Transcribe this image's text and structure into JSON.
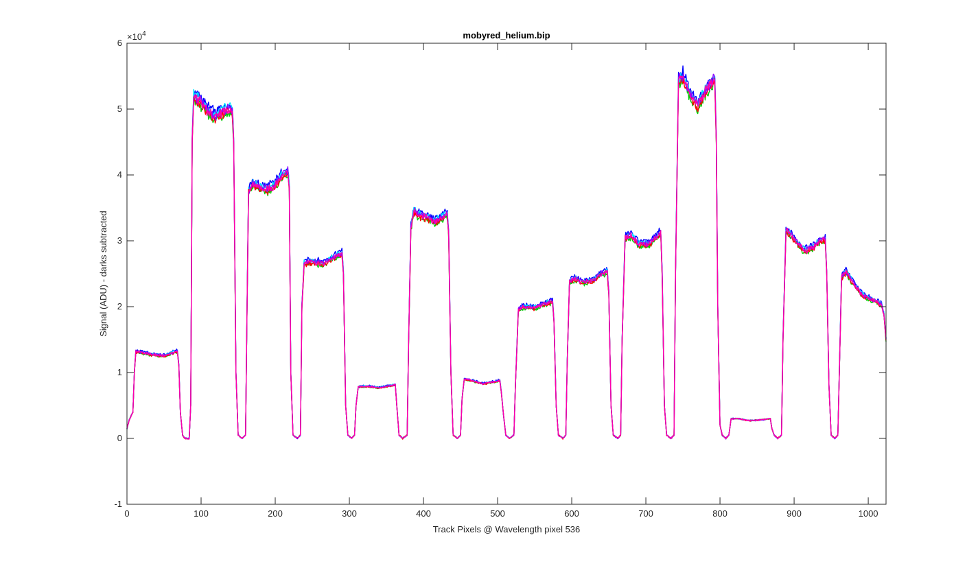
{
  "chart_data": {
    "type": "line",
    "title": "mobyred_helium.bip",
    "xlabel": "Track Pixels @ Wavelength pixel 536",
    "ylabel": "Signal (ADU) - darks subtracted",
    "xlim": [
      0,
      1024
    ],
    "ylim": [
      -10000,
      60000
    ],
    "y_exponent_label": "×10",
    "y_exponent_power": "4",
    "x_ticks": [
      0,
      100,
      200,
      300,
      400,
      500,
      600,
      700,
      800,
      900,
      1000
    ],
    "x_tick_labels": [
      "0",
      "100",
      "200",
      "300",
      "400",
      "500",
      "600",
      "700",
      "800",
      "900",
      "1000"
    ],
    "y_ticks": [
      -10000,
      0,
      10000,
      20000,
      30000,
      40000,
      50000,
      60000
    ],
    "y_tick_labels": [
      "-1",
      "0",
      "1",
      "2",
      "3",
      "4",
      "5",
      "6"
    ],
    "grid": false,
    "legend": "none",
    "series": [
      {
        "color": "#0000ff",
        "offset": 600
      },
      {
        "color": "#00cc00",
        "offset": -400
      },
      {
        "color": "#00e5ff",
        "offset": 300
      },
      {
        "color": "#ff0000",
        "offset": -250
      },
      {
        "color": "#8b00ff",
        "offset": 150
      },
      {
        "color": "#ff00aa",
        "offset": 0
      }
    ],
    "profile_points": [
      [
        0,
        1500
      ],
      [
        3,
        2800
      ],
      [
        8,
        4000
      ],
      [
        10,
        10000
      ],
      [
        12,
        13200
      ],
      [
        20,
        13000
      ],
      [
        35,
        12700
      ],
      [
        50,
        12500
      ],
      [
        62,
        13000
      ],
      [
        68,
        13200
      ],
      [
        70,
        11000
      ],
      [
        72,
        4000
      ],
      [
        75,
        500
      ],
      [
        78,
        0
      ],
      [
        84,
        0
      ],
      [
        86,
        5000
      ],
      [
        88,
        45000
      ],
      [
        90,
        51800
      ],
      [
        100,
        51000
      ],
      [
        110,
        49500
      ],
      [
        120,
        48800
      ],
      [
        128,
        49500
      ],
      [
        135,
        50000
      ],
      [
        142,
        49800
      ],
      [
        144,
        45000
      ],
      [
        147,
        10000
      ],
      [
        150,
        500
      ],
      [
        155,
        0
      ],
      [
        160,
        500
      ],
      [
        162,
        20000
      ],
      [
        164,
        37500
      ],
      [
        170,
        38500
      ],
      [
        180,
        38000
      ],
      [
        190,
        37800
      ],
      [
        200,
        38500
      ],
      [
        210,
        40000
      ],
      [
        217,
        40500
      ],
      [
        219,
        38000
      ],
      [
        221,
        10000
      ],
      [
        224,
        500
      ],
      [
        230,
        0
      ],
      [
        234,
        500
      ],
      [
        236,
        20000
      ],
      [
        239,
        26500
      ],
      [
        245,
        26800
      ],
      [
        255,
        26700
      ],
      [
        265,
        26500
      ],
      [
        275,
        27200
      ],
      [
        285,
        27800
      ],
      [
        290,
        28200
      ],
      [
        292,
        25000
      ],
      [
        295,
        5000
      ],
      [
        298,
        500
      ],
      [
        303,
        0
      ],
      [
        307,
        500
      ],
      [
        309,
        5000
      ],
      [
        312,
        7800
      ],
      [
        325,
        7900
      ],
      [
        340,
        7700
      ],
      [
        355,
        8000
      ],
      [
        362,
        8100
      ],
      [
        364,
        5000
      ],
      [
        367,
        500
      ],
      [
        372,
        0
      ],
      [
        378,
        500
      ],
      [
        380,
        15000
      ],
      [
        383,
        32000
      ],
      [
        387,
        34500
      ],
      [
        395,
        33800
      ],
      [
        405,
        33500
      ],
      [
        415,
        32800
      ],
      [
        425,
        33500
      ],
      [
        432,
        34000
      ],
      [
        434,
        31000
      ],
      [
        437,
        10000
      ],
      [
        440,
        500
      ],
      [
        446,
        0
      ],
      [
        450,
        500
      ],
      [
        452,
        6000
      ],
      [
        455,
        9000
      ],
      [
        465,
        8800
      ],
      [
        480,
        8300
      ],
      [
        495,
        8600
      ],
      [
        503,
        8800
      ],
      [
        505,
        7000
      ],
      [
        508,
        3500
      ],
      [
        511,
        500
      ],
      [
        516,
        0
      ],
      [
        522,
        500
      ],
      [
        524,
        8000
      ],
      [
        528,
        19500
      ],
      [
        535,
        20000
      ],
      [
        550,
        19800
      ],
      [
        565,
        20500
      ],
      [
        574,
        20800
      ],
      [
        576,
        18000
      ],
      [
        579,
        5000
      ],
      [
        582,
        500
      ],
      [
        588,
        0
      ],
      [
        592,
        500
      ],
      [
        594,
        12000
      ],
      [
        597,
        23800
      ],
      [
        605,
        24200
      ],
      [
        615,
        23700
      ],
      [
        630,
        24000
      ],
      [
        640,
        25000
      ],
      [
        648,
        25300
      ],
      [
        650,
        22000
      ],
      [
        653,
        5000
      ],
      [
        656,
        500
      ],
      [
        662,
        0
      ],
      [
        666,
        500
      ],
      [
        668,
        15000
      ],
      [
        672,
        30500
      ],
      [
        680,
        30800
      ],
      [
        690,
        29500
      ],
      [
        705,
        29500
      ],
      [
        720,
        31300
      ],
      [
        722,
        25000
      ],
      [
        725,
        5000
      ],
      [
        728,
        500
      ],
      [
        734,
        0
      ],
      [
        738,
        500
      ],
      [
        740,
        25000
      ],
      [
        744,
        54500
      ],
      [
        750,
        54800
      ],
      [
        760,
        52000
      ],
      [
        770,
        50500
      ],
      [
        782,
        53000
      ],
      [
        793,
        54500
      ],
      [
        795,
        45000
      ],
      [
        797,
        20000
      ],
      [
        800,
        2000
      ],
      [
        803,
        500
      ],
      [
        808,
        0
      ],
      [
        812,
        500
      ],
      [
        815,
        3000
      ],
      [
        825,
        3000
      ],
      [
        840,
        2700
      ],
      [
        855,
        2800
      ],
      [
        868,
        3000
      ],
      [
        870,
        1500
      ],
      [
        873,
        500
      ],
      [
        878,
        0
      ],
      [
        883,
        500
      ],
      [
        885,
        15000
      ],
      [
        889,
        31500
      ],
      [
        895,
        31000
      ],
      [
        905,
        29500
      ],
      [
        915,
        28500
      ],
      [
        925,
        29000
      ],
      [
        935,
        30000
      ],
      [
        942,
        30200
      ],
      [
        944,
        25000
      ],
      [
        947,
        8000
      ],
      [
        950,
        500
      ],
      [
        955,
        0
      ],
      [
        959,
        500
      ],
      [
        961,
        10000
      ],
      [
        964,
        24500
      ],
      [
        970,
        25300
      ],
      [
        980,
        23500
      ],
      [
        990,
        22000
      ],
      [
        1000,
        21200
      ],
      [
        1010,
        20800
      ],
      [
        1018,
        20300
      ],
      [
        1021,
        19000
      ],
      [
        1024,
        15000
      ]
    ]
  }
}
